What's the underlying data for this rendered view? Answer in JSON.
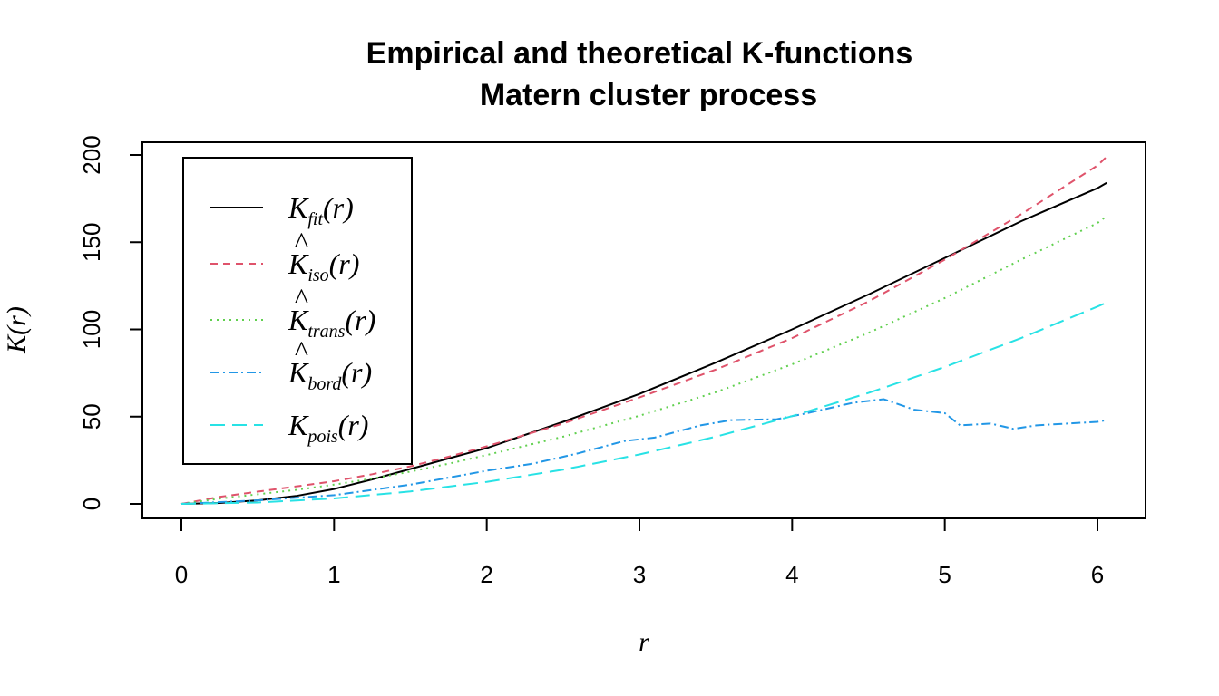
{
  "chart_data": {
    "type": "line",
    "title": "Empirical and theoretical K-functions",
    "subtitle": "Matern cluster process",
    "xlabel": "r",
    "ylabel": "K(r)",
    "xlim": [
      0,
      6.25
    ],
    "ylim": [
      -8,
      207
    ],
    "xticks": [
      "0",
      "1",
      "2",
      "3",
      "4",
      "5",
      "6"
    ],
    "yticks": [
      "0",
      "50",
      "100",
      "150",
      "200"
    ],
    "grid": false,
    "legend_position": "top-left",
    "series": [
      {
        "name": "K_fit(r)",
        "legend_main": "K",
        "legend_sub": "fit",
        "legend_hat": false,
        "color": "#000000",
        "dash": "",
        "x": [
          0,
          0.25,
          0.5,
          0.75,
          1,
          1.25,
          1.5,
          1.75,
          2,
          2.5,
          3,
          3.5,
          4,
          4.5,
          5,
          5.5,
          6,
          6.06
        ],
        "y": [
          0,
          0.5,
          2,
          4.5,
          8.5,
          14,
          20,
          26,
          32,
          47,
          63,
          81,
          100,
          120,
          141,
          162,
          181,
          184
        ]
      },
      {
        "name": "K_iso(r)",
        "legend_main": "K",
        "legend_sub": "iso",
        "legend_hat": true,
        "color": "#DF536B",
        "dash": "8,6",
        "x": [
          0,
          0.25,
          0.5,
          0.75,
          1,
          1.25,
          1.5,
          1.75,
          2,
          2.5,
          3,
          3.5,
          4,
          4.5,
          5,
          5.5,
          6,
          6.06
        ],
        "y": [
          0,
          4,
          7,
          10,
          13,
          17,
          21.5,
          27,
          33,
          46,
          61,
          77,
          95,
          116,
          140,
          166,
          194,
          199
        ]
      },
      {
        "name": "K_trans(r)",
        "legend_main": "K",
        "legend_sub": "trans",
        "legend_hat": true,
        "color": "#61D04F",
        "dash": "2,5",
        "x": [
          0,
          0.25,
          0.5,
          0.75,
          1,
          1.25,
          1.5,
          1.75,
          2,
          2.5,
          3,
          3.5,
          4,
          4.5,
          5,
          5.5,
          6,
          6.06
        ],
        "y": [
          0,
          3,
          5.5,
          8,
          11,
          14.5,
          18.5,
          23,
          28,
          38.5,
          50.5,
          64,
          80,
          98,
          118,
          140,
          161,
          165
        ]
      },
      {
        "name": "K_bord(r)",
        "legend_main": "K",
        "legend_sub": "bord",
        "legend_hat": true,
        "color": "#2297E6",
        "dash": "10,4,2,4",
        "x": [
          0,
          0.5,
          1,
          1.5,
          2,
          2.3,
          2.6,
          2.9,
          3.1,
          3.4,
          3.6,
          3.9,
          4.1,
          4.4,
          4.6,
          4.8,
          5.0,
          5.1,
          5.3,
          5.45,
          5.6,
          5.8,
          6.0,
          6.06
        ],
        "y": [
          0,
          2,
          5,
          11,
          19,
          23,
          29,
          36,
          38,
          45,
          48,
          48.5,
          52,
          58,
          60,
          54,
          52,
          45,
          46,
          43,
          45,
          46,
          47,
          48
        ]
      },
      {
        "name": "K_pois(r)",
        "legend_main": "K",
        "legend_sub": "pois",
        "legend_hat": false,
        "color": "#28E2E5",
        "dash": "16,8",
        "x": [
          0,
          0.5,
          1,
          1.5,
          2,
          2.5,
          3,
          3.5,
          4,
          4.5,
          5,
          5.5,
          6,
          6.06
        ],
        "y": [
          0,
          0.8,
          3.1,
          7.1,
          12.6,
          19.6,
          28.3,
          38.5,
          50.3,
          63.6,
          78.5,
          95,
          113.1,
          115.4
        ]
      }
    ]
  }
}
